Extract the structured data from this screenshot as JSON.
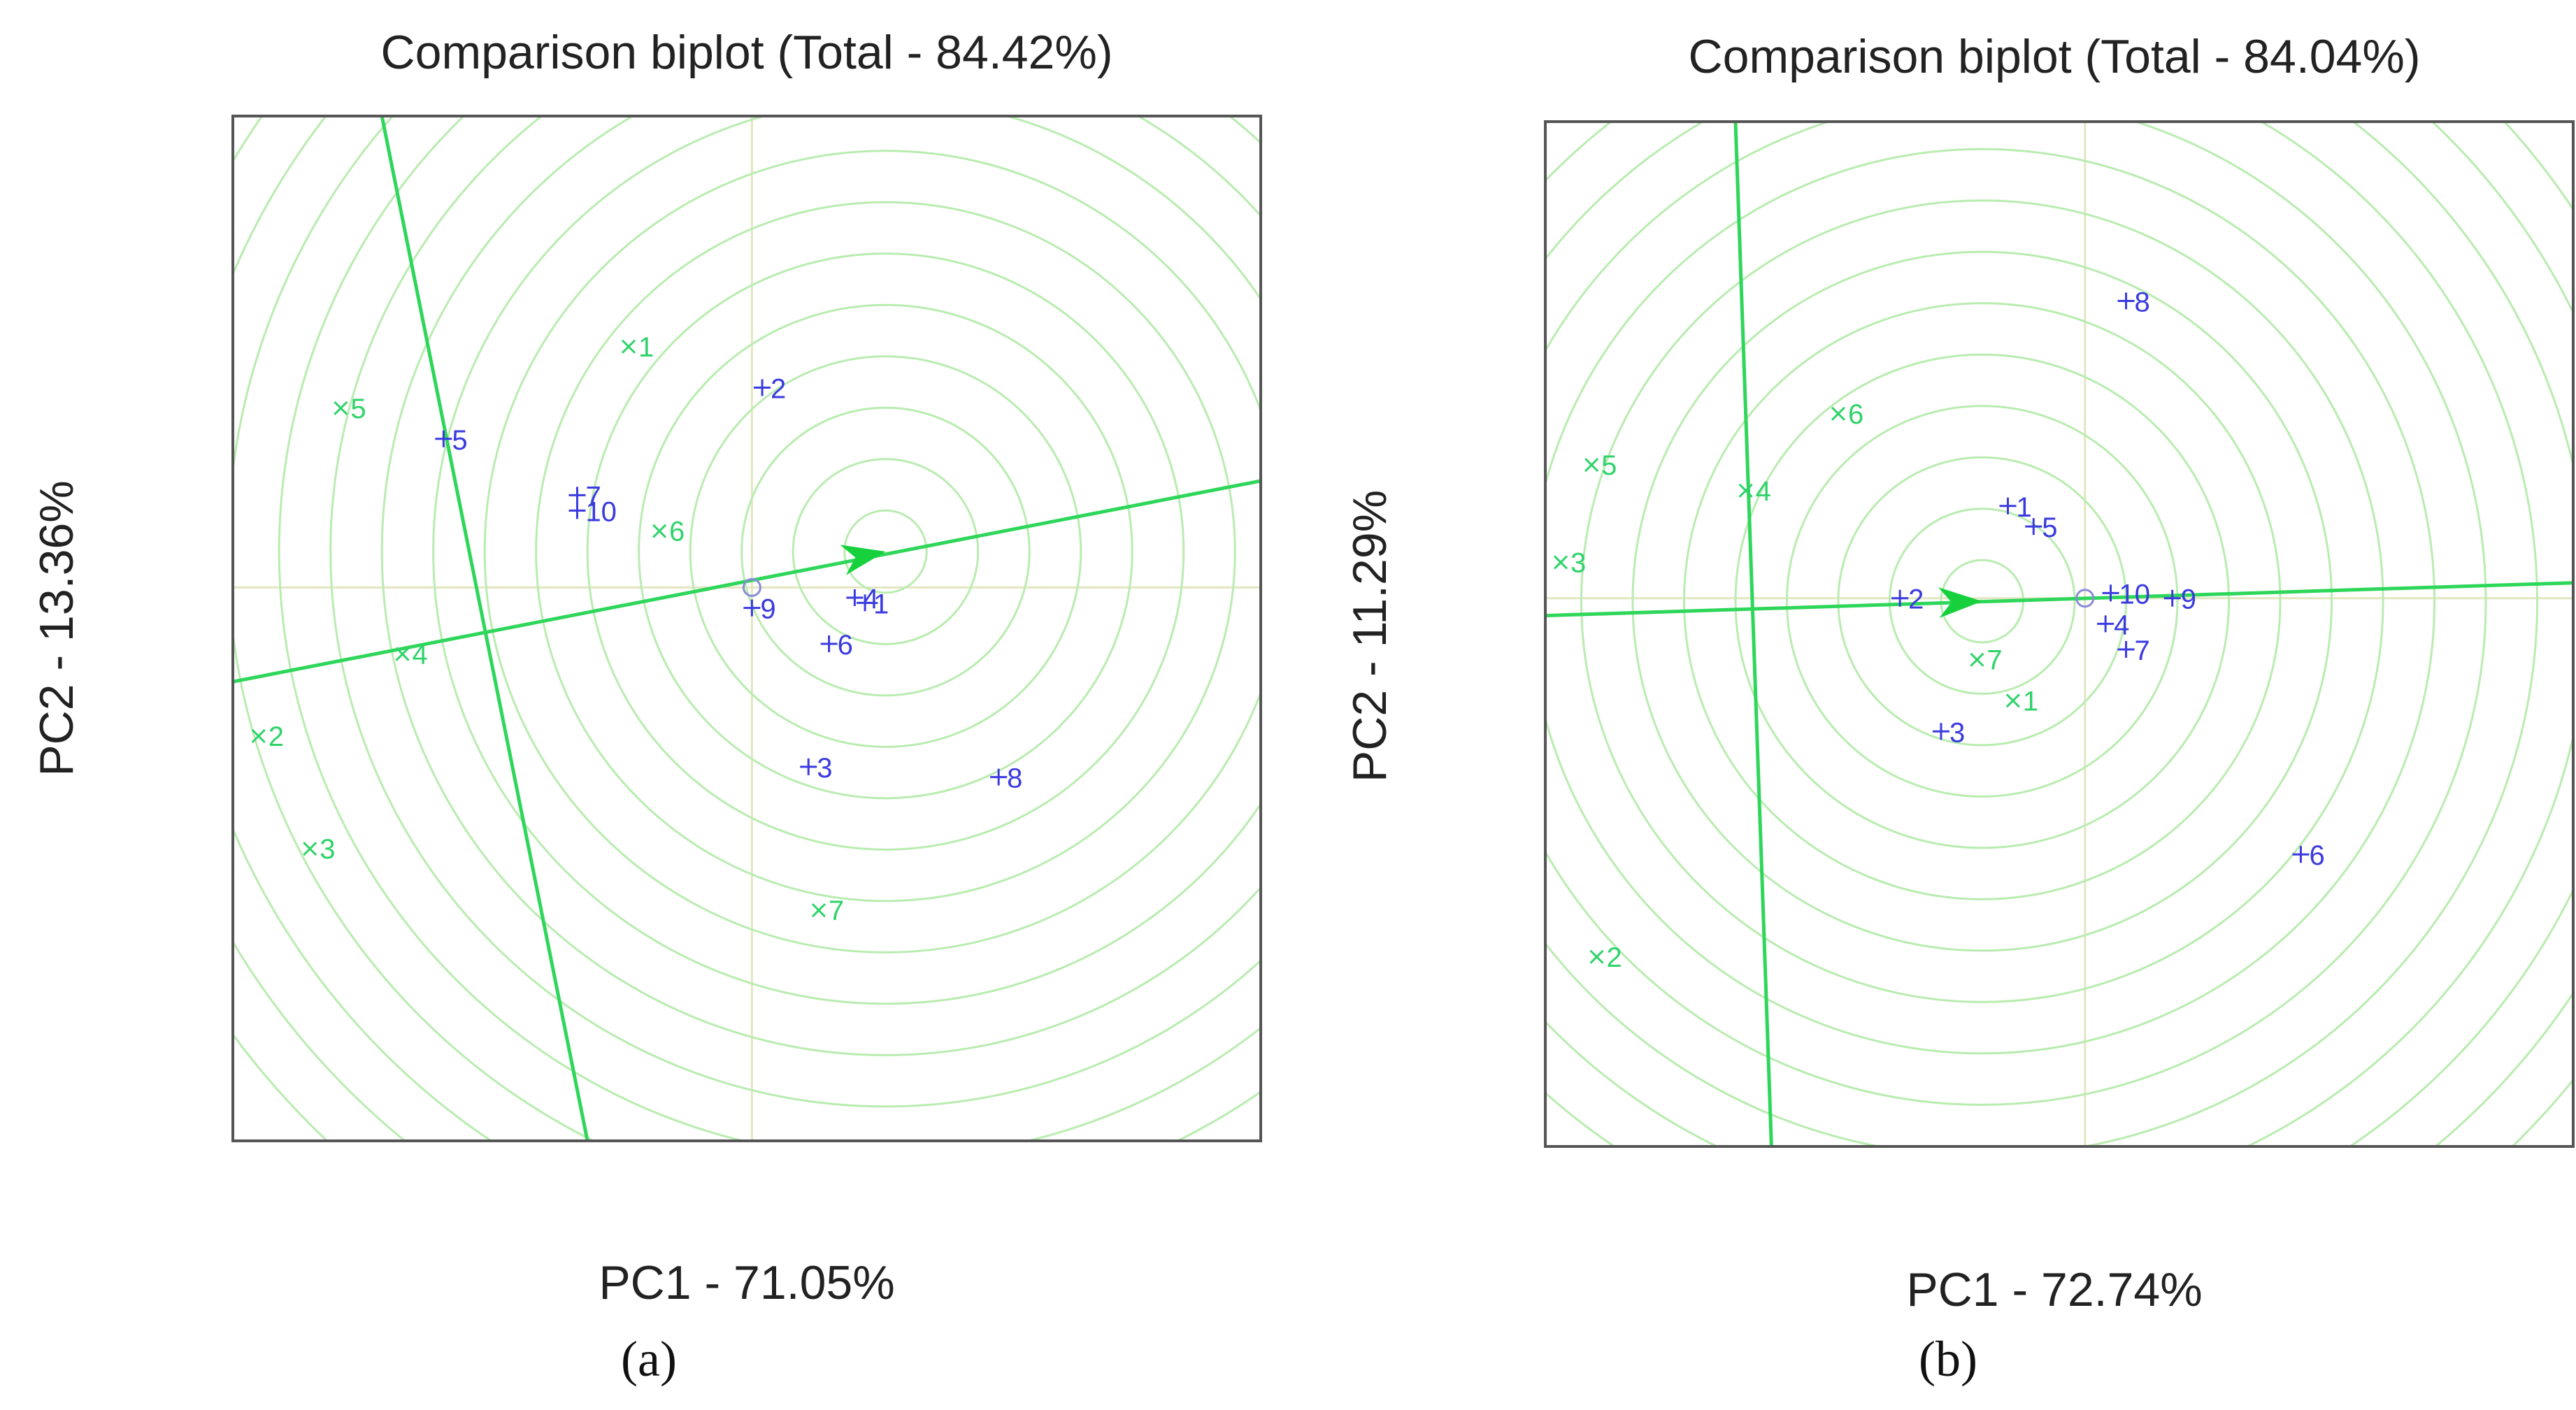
{
  "colors": {
    "ring": "#b9ecb0",
    "axis_line": "#2ed65a",
    "arrow": "#16d13c",
    "env": "#2fd36a",
    "gen": "#3a3ae0",
    "crosshair": "#e2e6c0"
  },
  "chart_data": [
    {
      "type": "scatter",
      "id": "a",
      "title": "Comparison biplot (Total - 84.42%)",
      "xlabel": "PC1 - 71.05%",
      "ylabel": "PC2 - 13.36%",
      "caption": "(a)",
      "xlim": [
        0,
        100
      ],
      "ylim": [
        0,
        100
      ],
      "average_point": [
        50.5,
        54.0
      ],
      "ideal_point": [
        63.5,
        57.5
      ],
      "aec_line": [
        [
          0,
          44.8
        ],
        [
          100,
          64.4
        ]
      ],
      "perp_line": [
        [
          14.5,
          100
        ],
        [
          34.5,
          0
        ]
      ],
      "ring_radii": [
        4,
        9,
        14,
        19,
        24,
        29,
        34,
        39,
        44,
        49,
        54,
        59,
        64,
        69,
        74,
        79
      ],
      "environments": [
        {
          "label": "1",
          "x": 38.5,
          "y": 77.5
        },
        {
          "label": "2",
          "x": 2.5,
          "y": 39.5
        },
        {
          "label": "3",
          "x": 7.5,
          "y": 28.5
        },
        {
          "label": "4",
          "x": 16.5,
          "y": 47.5
        },
        {
          "label": "5",
          "x": 10.5,
          "y": 71.5
        },
        {
          "label": "6",
          "x": 41.5,
          "y": 59.5
        },
        {
          "label": "7",
          "x": 57.0,
          "y": 22.5
        }
      ],
      "genotypes": [
        {
          "label": "1",
          "x": 61.5,
          "y": 52.5
        },
        {
          "label": "2",
          "x": 51.5,
          "y": 73.5
        },
        {
          "label": "3",
          "x": 56.0,
          "y": 36.5
        },
        {
          "label": "4",
          "x": 60.5,
          "y": 53.0
        },
        {
          "label": "5",
          "x": 20.5,
          "y": 68.5
        },
        {
          "label": "6",
          "x": 58.0,
          "y": 48.5
        },
        {
          "label": "7",
          "x": 33.5,
          "y": 63.0
        },
        {
          "label": "8",
          "x": 74.5,
          "y": 35.5
        },
        {
          "label": "9",
          "x": 50.5,
          "y": 52.0
        },
        {
          "label": "10",
          "x": 33.5,
          "y": 61.5
        }
      ]
    },
    {
      "type": "scatter",
      "id": "b",
      "title": "Comparison biplot (Total - 84.04%)",
      "xlabel": "PC1 - 72.74%",
      "ylabel": "PC2 - 11.29%",
      "caption": "(b)",
      "xlim": [
        0,
        100
      ],
      "ylim": [
        0,
        100
      ],
      "average_point": [
        52.5,
        53.5
      ],
      "ideal_point": [
        42.5,
        53.2
      ],
      "aec_line": [
        [
          0,
          51.8
        ],
        [
          100,
          55.0
        ]
      ],
      "perp_line": [
        [
          18.5,
          100
        ],
        [
          22.0,
          0
        ]
      ],
      "ring_radii": [
        4,
        9,
        14,
        19,
        24,
        29,
        34,
        39,
        44,
        49,
        54,
        59,
        64,
        69,
        74,
        79
      ],
      "environments": [
        {
          "label": "1",
          "x": 45.5,
          "y": 43.5
        },
        {
          "label": "2",
          "x": 5.0,
          "y": 18.5
        },
        {
          "label": "3",
          "x": 1.5,
          "y": 57.0
        },
        {
          "label": "4",
          "x": 19.5,
          "y": 64.0
        },
        {
          "label": "5",
          "x": 4.5,
          "y": 66.5
        },
        {
          "label": "6",
          "x": 28.5,
          "y": 71.5
        },
        {
          "label": "7",
          "x": 42.0,
          "y": 47.5
        }
      ],
      "genotypes": [
        {
          "label": "1",
          "x": 45.0,
          "y": 62.5
        },
        {
          "label": "2",
          "x": 34.5,
          "y": 53.5
        },
        {
          "label": "3",
          "x": 38.5,
          "y": 40.5
        },
        {
          "label": "4",
          "x": 54.5,
          "y": 51.0
        },
        {
          "label": "5",
          "x": 47.5,
          "y": 60.5
        },
        {
          "label": "6",
          "x": 73.5,
          "y": 28.5
        },
        {
          "label": "7",
          "x": 56.5,
          "y": 48.5
        },
        {
          "label": "8",
          "x": 56.5,
          "y": 82.5
        },
        {
          "label": "9",
          "x": 61.0,
          "y": 53.5
        },
        {
          "label": "10",
          "x": 55.0,
          "y": 54.0
        }
      ]
    }
  ]
}
